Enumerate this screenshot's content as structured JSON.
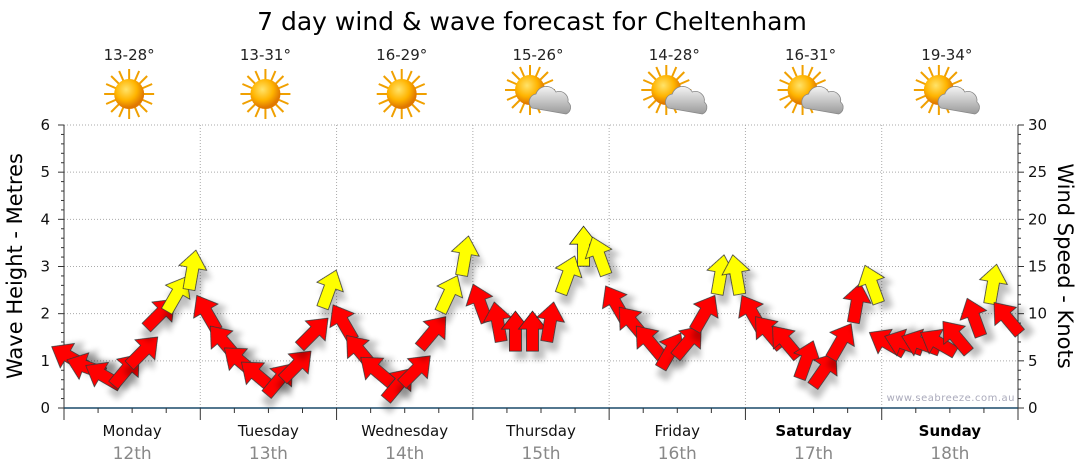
{
  "chart_data": {
    "type": "scatter",
    "title": "7 day wind & wave forecast for Cheltenham",
    "ylabel_left": "Wave Height - Metres",
    "ylabel_right": "Wind Speed - Knots",
    "ylim_left": [
      0,
      6
    ],
    "ylim_right": [
      0,
      30
    ],
    "yticks_left": [
      "0",
      "1",
      "2",
      "3",
      "4",
      "5",
      "6"
    ],
    "yticks_right": [
      "0",
      "5",
      "10",
      "15",
      "20",
      "25",
      "30"
    ],
    "grid": true,
    "watermark": "www.seabreeze.com.au",
    "days": [
      {
        "name": "Monday",
        "date": "12th",
        "temp": "13-28°",
        "icon": "sun-icon",
        "bold": false
      },
      {
        "name": "Tuesday",
        "date": "13th",
        "temp": "13-31°",
        "icon": "sun-icon",
        "bold": false
      },
      {
        "name": "Wednesday",
        "date": "14th",
        "temp": "16-29°",
        "icon": "sun-icon",
        "bold": false
      },
      {
        "name": "Thursday",
        "date": "15th",
        "temp": "15-26°",
        "icon": "partly-cloudy-icon",
        "bold": false
      },
      {
        "name": "Friday",
        "date": "16th",
        "temp": "14-28°",
        "icon": "partly-cloudy-icon",
        "bold": false
      },
      {
        "name": "Saturday",
        "date": "17th",
        "temp": "16-31°",
        "icon": "partly-cloudy-icon",
        "bold": true
      },
      {
        "name": "Sunday",
        "date": "18th",
        "temp": "19-34°",
        "icon": "partly-cloudy-icon",
        "bold": true
      }
    ],
    "wind_series": {
      "name": "Wind speed (knots), 3-hourly",
      "knots": [
        6.5,
        5.5,
        4.5,
        5,
        7,
        11,
        13,
        15.5,
        11,
        8,
        6,
        4.5,
        4,
        5.5,
        9,
        13.5,
        10,
        7,
        5,
        3.5,
        5,
        9,
        13,
        17,
        12,
        10,
        9,
        9,
        10,
        15,
        18,
        17,
        12,
        10,
        8,
        7,
        8,
        11,
        15,
        15,
        11,
        9,
        8,
        6,
        5,
        8,
        12,
        14,
        8,
        8,
        8,
        8,
        8.5,
        10.5,
        14,
        10.5
      ],
      "direction_deg": [
        -60,
        -70,
        -60,
        40,
        45,
        45,
        30,
        10,
        -30,
        -40,
        -50,
        -50,
        40,
        45,
        45,
        20,
        -30,
        -40,
        -50,
        40,
        45,
        40,
        25,
        10,
        -20,
        -10,
        0,
        0,
        10,
        20,
        0,
        -20,
        -30,
        -40,
        -40,
        30,
        40,
        30,
        10,
        -10,
        -30,
        -40,
        -40,
        20,
        35,
        30,
        10,
        -20,
        -60,
        -70,
        -70,
        -60,
        -40,
        -20,
        10,
        -40
      ],
      "highlight_threshold_knots": 13,
      "colors": {
        "normal": "#ff0000",
        "strong": "#ffff00"
      }
    }
  }
}
